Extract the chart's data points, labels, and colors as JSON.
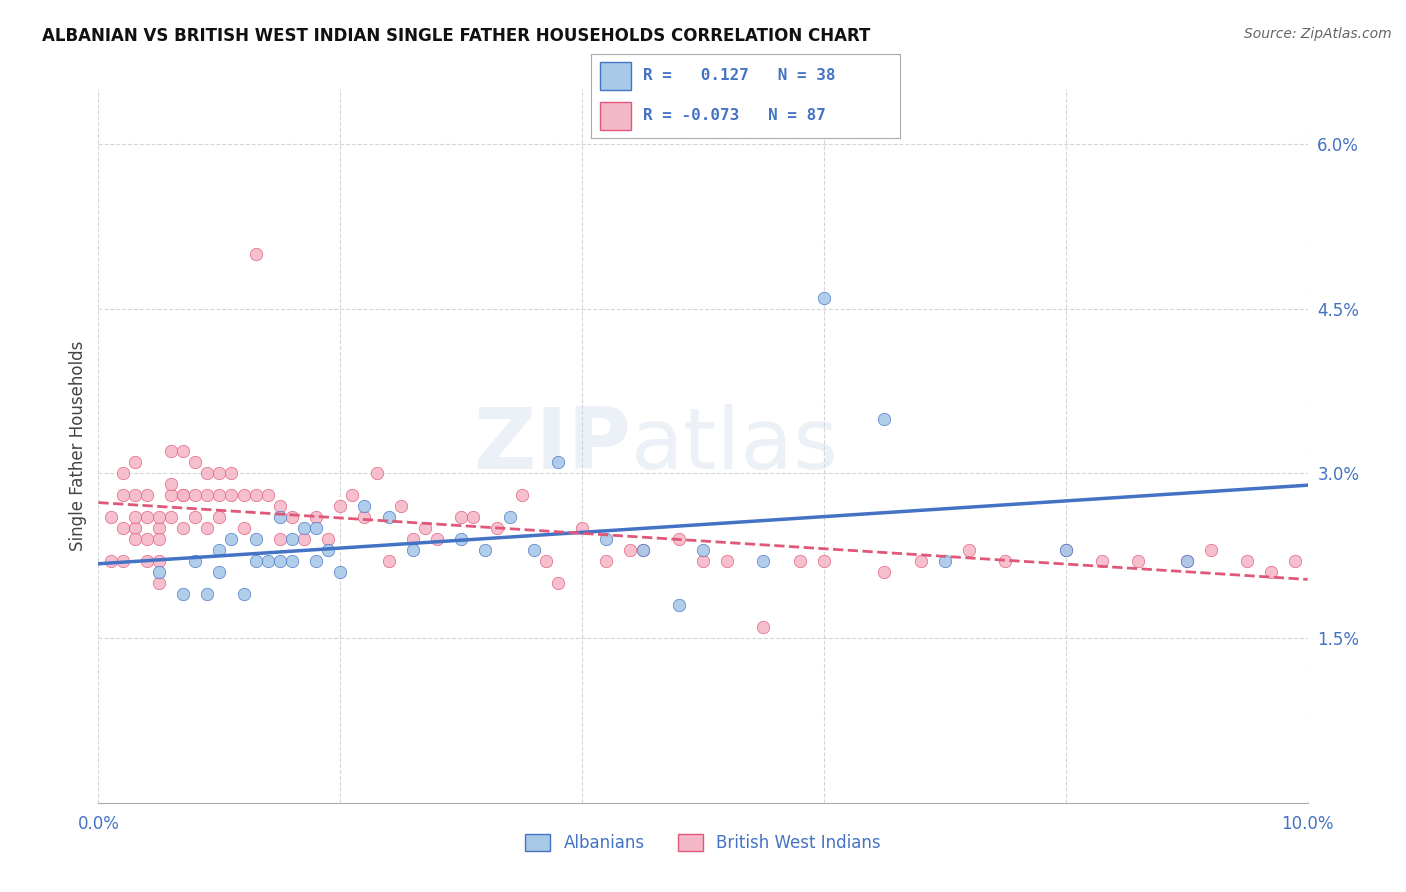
{
  "title": "ALBANIAN VS BRITISH WEST INDIAN SINGLE FATHER HOUSEHOLDS CORRELATION CHART",
  "source": "Source: ZipAtlas.com",
  "ylabel": "Single Father Households",
  "color_albanian": "#a8c8e8",
  "color_bwi": "#f4b8c8",
  "color_albanian_line": "#4472c4",
  "color_bwi_line": "#e05878",
  "color_text_blue": "#4472c4",
  "watermark_zip": "ZIP",
  "watermark_atlas": "atlas",
  "xlim": [
    0.0,
    0.1
  ],
  "ylim": [
    0.0,
    0.065
  ],
  "yticks": [
    0.015,
    0.03,
    0.045,
    0.06
  ],
  "ytick_labels": [
    "1.5%",
    "3.0%",
    "4.5%",
    "6.0%"
  ],
  "xticks": [
    0.0,
    0.02,
    0.04,
    0.06,
    0.08,
    0.1
  ],
  "xtick_labels": [
    "0.0%",
    "",
    "",
    "",
    "",
    "10.0%"
  ],
  "legend_labels": [
    "Albanians",
    "British West Indians"
  ],
  "albanian_x": [
    0.005,
    0.007,
    0.008,
    0.009,
    0.01,
    0.01,
    0.011,
    0.012,
    0.013,
    0.013,
    0.014,
    0.015,
    0.015,
    0.016,
    0.016,
    0.017,
    0.018,
    0.018,
    0.019,
    0.02,
    0.022,
    0.024,
    0.026,
    0.03,
    0.032,
    0.034,
    0.036,
    0.038,
    0.042,
    0.045,
    0.048,
    0.05,
    0.055,
    0.06,
    0.065,
    0.07,
    0.08,
    0.09
  ],
  "albanian_y": [
    0.021,
    0.019,
    0.022,
    0.019,
    0.021,
    0.023,
    0.024,
    0.019,
    0.024,
    0.022,
    0.022,
    0.022,
    0.026,
    0.024,
    0.022,
    0.025,
    0.025,
    0.022,
    0.023,
    0.021,
    0.027,
    0.026,
    0.023,
    0.024,
    0.023,
    0.026,
    0.023,
    0.031,
    0.024,
    0.023,
    0.018,
    0.023,
    0.022,
    0.046,
    0.035,
    0.022,
    0.023,
    0.022
  ],
  "bwi_x": [
    0.001,
    0.001,
    0.002,
    0.002,
    0.002,
    0.002,
    0.003,
    0.003,
    0.003,
    0.003,
    0.003,
    0.004,
    0.004,
    0.004,
    0.004,
    0.005,
    0.005,
    0.005,
    0.005,
    0.005,
    0.006,
    0.006,
    0.006,
    0.006,
    0.007,
    0.007,
    0.007,
    0.007,
    0.008,
    0.008,
    0.008,
    0.009,
    0.009,
    0.009,
    0.01,
    0.01,
    0.01,
    0.011,
    0.011,
    0.012,
    0.012,
    0.013,
    0.013,
    0.014,
    0.015,
    0.015,
    0.016,
    0.017,
    0.018,
    0.019,
    0.02,
    0.021,
    0.022,
    0.023,
    0.024,
    0.025,
    0.026,
    0.027,
    0.028,
    0.03,
    0.031,
    0.033,
    0.035,
    0.037,
    0.038,
    0.04,
    0.042,
    0.044,
    0.045,
    0.048,
    0.05,
    0.052,
    0.055,
    0.058,
    0.06,
    0.065,
    0.068,
    0.072,
    0.075,
    0.08,
    0.083,
    0.086,
    0.09,
    0.092,
    0.095,
    0.097,
    0.099
  ],
  "bwi_y": [
    0.026,
    0.022,
    0.028,
    0.03,
    0.025,
    0.022,
    0.025,
    0.028,
    0.031,
    0.026,
    0.024,
    0.026,
    0.028,
    0.024,
    0.022,
    0.025,
    0.026,
    0.024,
    0.022,
    0.02,
    0.028,
    0.032,
    0.029,
    0.026,
    0.028,
    0.025,
    0.032,
    0.028,
    0.031,
    0.028,
    0.026,
    0.028,
    0.03,
    0.025,
    0.03,
    0.028,
    0.026,
    0.03,
    0.028,
    0.025,
    0.028,
    0.05,
    0.028,
    0.028,
    0.027,
    0.024,
    0.026,
    0.024,
    0.026,
    0.024,
    0.027,
    0.028,
    0.026,
    0.03,
    0.022,
    0.027,
    0.024,
    0.025,
    0.024,
    0.026,
    0.026,
    0.025,
    0.028,
    0.022,
    0.02,
    0.025,
    0.022,
    0.023,
    0.023,
    0.024,
    0.022,
    0.022,
    0.016,
    0.022,
    0.022,
    0.021,
    0.022,
    0.023,
    0.022,
    0.023,
    0.022,
    0.022,
    0.022,
    0.023,
    0.022,
    0.021,
    0.022
  ]
}
